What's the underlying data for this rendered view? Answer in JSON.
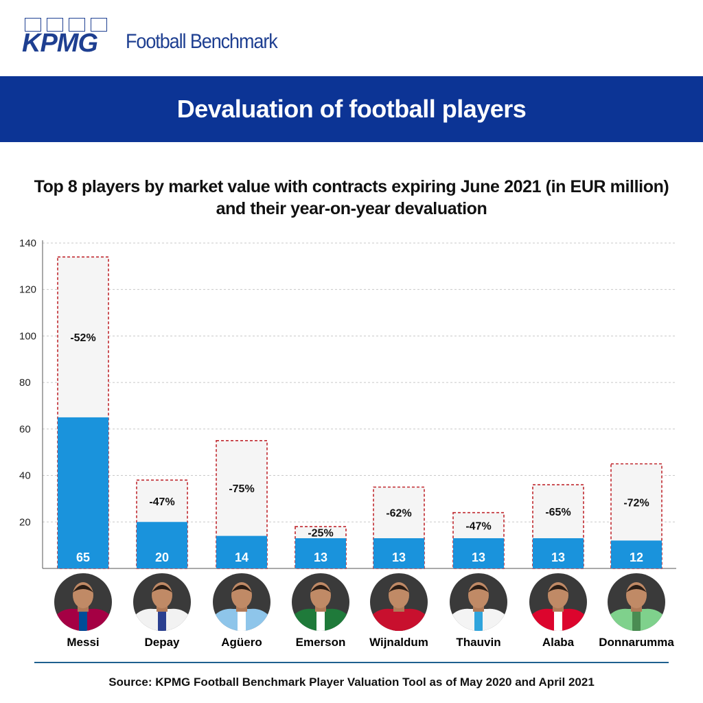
{
  "brand": {
    "logo_text": "KPMG",
    "product": "Football Benchmark",
    "color": "#1e3f91"
  },
  "banner": {
    "title": "Devaluation of football players",
    "color": "#0c3495"
  },
  "chart_title_line1": "Top 8 players by market value with contracts expiring June 2021 (in EUR million)",
  "chart_title_line2": "and their year-on-year devaluation",
  "chart_data": {
    "type": "bar",
    "categories": [
      "Messi",
      "Depay",
      "Agüero",
      "Emerson",
      "Wijnaldum",
      "Thauvin",
      "Alaba",
      "Donnarumma"
    ],
    "series": [
      {
        "values": [
          65,
          20,
          14,
          13,
          13,
          13,
          13,
          12
        ]
      },
      {
        "values": [
          134,
          38,
          55,
          18,
          35,
          24,
          36,
          45
        ]
      }
    ],
    "value_labels": [
      "65",
      "20",
      "14",
      "13",
      "13",
      "13",
      "13",
      "12"
    ],
    "devaluation_labels": [
      "-52%",
      "-47%",
      "-75%",
      "-25%",
      "-62%",
      "-47%",
      "-65%",
      "-72%"
    ],
    "ylim": [
      0,
      140
    ],
    "yticks": [
      20,
      40,
      60,
      80,
      100,
      120,
      140
    ],
    "grid": true,
    "colors": {
      "current": "#1a93dc",
      "previous_fill": "#f5f5f5",
      "previous_border": "#c0272d"
    }
  },
  "player_photos": [
    "Messi",
    "Depay",
    "Agüero",
    "Emerson",
    "Wijnaldum",
    "Thauvin",
    "Alaba",
    "Donnarumma"
  ],
  "photo_colors": {
    "Messi": [
      "#a50044",
      "#004d98"
    ],
    "Depay": [
      "#f2f2f2",
      "#2a3f8f"
    ],
    "Agüero": [
      "#8ec5ea",
      "#ffffff"
    ],
    "Emerson": [
      "#1f7a3a",
      "#ffffff"
    ],
    "Wijnaldum": [
      "#c8102e",
      "#c8102e"
    ],
    "Thauvin": [
      "#f4f4f4",
      "#2fa4dc"
    ],
    "Alaba": [
      "#dc052d",
      "#ffffff"
    ],
    "Donnarumma": [
      "#7fd18c",
      "#4a8c52"
    ]
  },
  "source": "Source: KPMG Football Benchmark Player Valuation Tool as of May 2020 and April 2021"
}
